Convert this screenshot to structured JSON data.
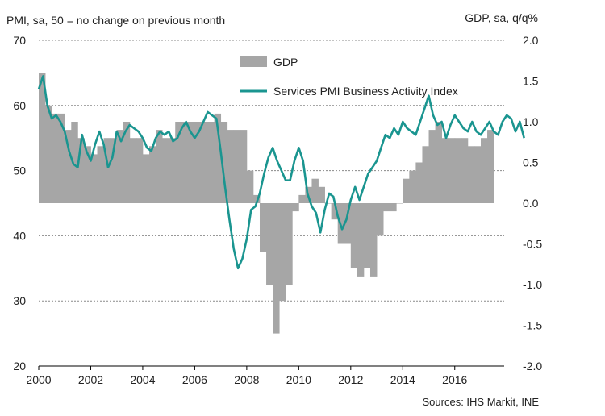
{
  "chart_data": {
    "type": "bar+line",
    "left_axis_title": "PMI, sa, 50 = no change on previous month",
    "right_axis_title": "GDP, sa, q/q%",
    "source": "Sources: IHS Markit, INE",
    "left_ylim": [
      20,
      70
    ],
    "left_ticks": [
      "20",
      "30",
      "40",
      "50",
      "60",
      "70"
    ],
    "right_ylim": [
      -2.0,
      2.0
    ],
    "right_ticks": [
      "-2.0",
      "-1.5",
      "-1.0",
      "-0.5",
      "0.0",
      "0.5",
      "1.0",
      "1.5",
      "2.0"
    ],
    "xlim": [
      2000,
      2017.9
    ],
    "x_ticks": [
      "2000",
      "2002",
      "2004",
      "2006",
      "2008",
      "2010",
      "2012",
      "2014",
      "2016"
    ],
    "grid": "horizontal dashed",
    "legend": [
      {
        "name": "GDP",
        "kind": "bar",
        "color": "#a6a6a6"
      },
      {
        "name": "Services PMI Business Activity Index",
        "kind": "line",
        "color": "#1a9590"
      }
    ],
    "series": [
      {
        "name": "GDP",
        "kind": "bar",
        "axis": "right",
        "color": "#a6a6a6",
        "quarters": [
          "2000Q1",
          "2000Q2",
          "2000Q3",
          "2000Q4",
          "2001Q1",
          "2001Q2",
          "2001Q3",
          "2001Q4",
          "2002Q1",
          "2002Q2",
          "2002Q3",
          "2002Q4",
          "2003Q1",
          "2003Q2",
          "2003Q3",
          "2003Q4",
          "2004Q1",
          "2004Q2",
          "2004Q3",
          "2004Q4",
          "2005Q1",
          "2005Q2",
          "2005Q3",
          "2005Q4",
          "2006Q1",
          "2006Q2",
          "2006Q3",
          "2006Q4",
          "2007Q1",
          "2007Q2",
          "2007Q3",
          "2007Q4",
          "2008Q1",
          "2008Q2",
          "2008Q3",
          "2008Q4",
          "2009Q1",
          "2009Q2",
          "2009Q3",
          "2009Q4",
          "2010Q1",
          "2010Q2",
          "2010Q3",
          "2010Q4",
          "2011Q1",
          "2011Q2",
          "2011Q3",
          "2011Q4",
          "2012Q1",
          "2012Q2",
          "2012Q3",
          "2012Q4",
          "2013Q1",
          "2013Q2",
          "2013Q3",
          "2013Q4",
          "2014Q1",
          "2014Q2",
          "2014Q3",
          "2014Q4",
          "2015Q1",
          "2015Q2",
          "2015Q3",
          "2015Q4",
          "2016Q1",
          "2016Q2",
          "2016Q3",
          "2016Q4",
          "2017Q1",
          "2017Q2"
        ],
        "values": [
          1.6,
          1.2,
          1.1,
          1.1,
          0.9,
          1.0,
          0.8,
          0.7,
          0.6,
          0.7,
          0.8,
          0.8,
          0.9,
          1.0,
          0.8,
          0.8,
          0.6,
          0.7,
          0.9,
          0.8,
          0.8,
          1.0,
          1.0,
          1.0,
          1.0,
          1.0,
          1.0,
          1.1,
          1.0,
          0.9,
          0.9,
          0.9,
          0.4,
          0.1,
          -0.6,
          -1.0,
          -1.6,
          -1.2,
          -1.0,
          -0.1,
          0.1,
          0.2,
          0.3,
          0.2,
          0.0,
          -0.2,
          -0.5,
          -0.5,
          -0.8,
          -0.9,
          -0.8,
          -0.9,
          -0.4,
          -0.1,
          -0.1,
          0.0,
          0.3,
          0.4,
          0.5,
          0.7,
          0.9,
          1.0,
          0.8,
          0.8,
          0.8,
          0.8,
          0.7,
          0.7,
          0.8,
          0.9
        ]
      },
      {
        "name": "Services PMI Business Activity Index",
        "kind": "line",
        "axis": "left",
        "color": "#1a9590",
        "x_start": 2000.0,
        "x_step_years": 0.16667,
        "values": [
          62.5,
          64.5,
          60.0,
          58.0,
          58.5,
          57.5,
          56.0,
          53.0,
          51.0,
          50.5,
          55.5,
          53.0,
          51.5,
          54.0,
          56.0,
          54.0,
          50.5,
          52.0,
          56.0,
          54.5,
          56.0,
          57.0,
          56.5,
          56.0,
          55.0,
          53.5,
          53.0,
          55.0,
          56.0,
          55.5,
          56.0,
          54.5,
          55.0,
          56.5,
          57.5,
          56.0,
          55.0,
          56.0,
          57.5,
          59.0,
          58.5,
          58.0,
          53.0,
          47.5,
          42.5,
          38.0,
          35.0,
          36.5,
          39.5,
          44.0,
          44.5,
          46.5,
          49.5,
          52.0,
          53.5,
          51.5,
          50.0,
          48.5,
          48.5,
          51.5,
          53.5,
          51.5,
          46.5,
          44.5,
          43.5,
          40.5,
          44.0,
          46.5,
          46.0,
          43.0,
          41.0,
          42.5,
          45.5,
          47.5,
          45.5,
          47.5,
          49.5,
          50.5,
          51.5,
          53.5,
          55.5,
          55.0,
          56.5,
          55.5,
          57.5,
          56.5,
          56.0,
          55.5,
          57.5,
          59.5,
          61.5,
          58.5,
          57.0,
          57.5,
          55.0,
          57.0,
          58.5,
          57.5,
          56.5,
          56.0,
          57.5,
          56.0,
          55.5,
          56.5,
          57.5,
          56.0,
          55.5,
          57.5,
          58.5,
          58.0,
          56.0,
          57.5,
          55.0
        ]
      }
    ]
  }
}
